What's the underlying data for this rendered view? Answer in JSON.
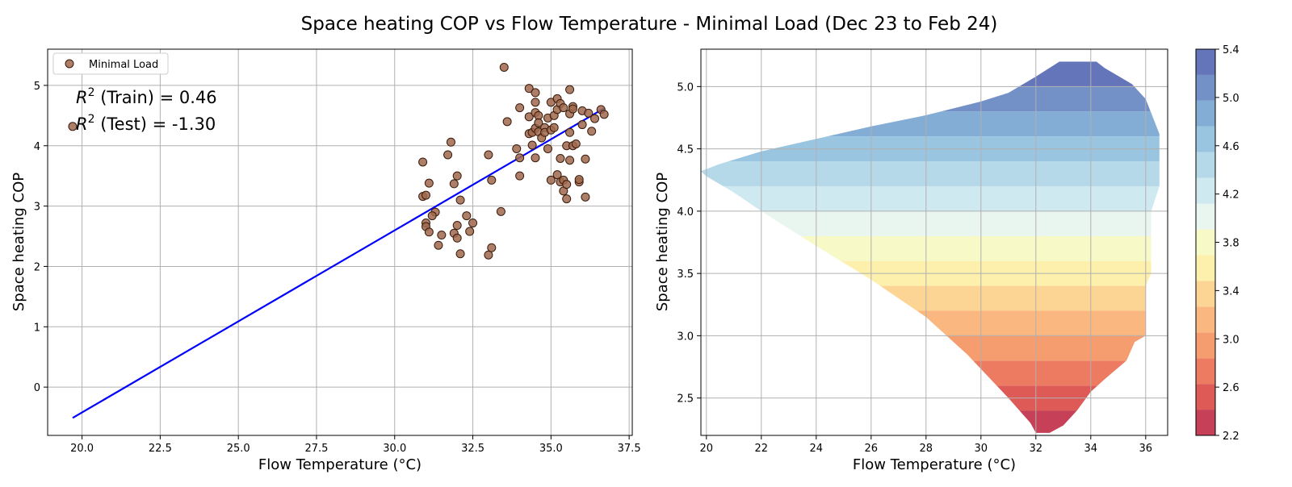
{
  "figure": {
    "title": "Space heating COP vs Flow Temperature - Minimal Load (Dec 23 to Feb 24)"
  },
  "colors": {
    "scatter_fill": "#a0694e",
    "scatter_edge": "#3a1a0a",
    "fit_line": "#0000ff",
    "grid": "#b0b0b0",
    "colorbar": [
      "#c64157",
      "#de5a56",
      "#ec7b61",
      "#f69d70",
      "#fab780",
      "#fcd594",
      "#fdefac",
      "#f7f9c6",
      "#e9f5ef",
      "#cfe9f1",
      "#b6d9ea",
      "#9ac5e0",
      "#84add5",
      "#7491c7",
      "#6476b9"
    ]
  },
  "chart_data": [
    {
      "type": "scatter",
      "xlabel": "Flow Temperature (°C)",
      "ylabel": "Space heating COP",
      "xlim": [
        18.9,
        37.6
      ],
      "ylim": [
        -0.8,
        5.6
      ],
      "xticks": [
        "20.0",
        "22.5",
        "25.0",
        "27.5",
        "30.0",
        "32.5",
        "35.0",
        "37.5"
      ],
      "xtick_values": [
        20,
        22.5,
        25,
        27.5,
        30,
        32.5,
        35,
        37.5
      ],
      "yticks": [
        "0",
        "1",
        "2",
        "3",
        "4",
        "5"
      ],
      "ytick_values": [
        0,
        1,
        2,
        3,
        4,
        5
      ],
      "grid": true,
      "legend": {
        "position": "top-left",
        "entries": [
          "Minimal Load"
        ]
      },
      "annotations": {
        "train_prefix": "R",
        "train_text": " (Train) = 0.46",
        "test_prefix": "R",
        "test_text": " (Test) = -1.30",
        "superscript": "2"
      },
      "series": [
        {
          "name": "Minimal Load",
          "points": [
            [
              19.7,
              4.32
            ],
            [
              30.9,
              3.73
            ],
            [
              31.1,
              3.38
            ],
            [
              30.9,
              3.16
            ],
            [
              31.0,
              3.18
            ],
            [
              31.3,
              2.9
            ],
            [
              31.2,
              2.84
            ],
            [
              31.0,
              2.72
            ],
            [
              31.0,
              2.66
            ],
            [
              31.1,
              2.57
            ],
            [
              31.4,
              2.35
            ],
            [
              31.5,
              2.52
            ],
            [
              31.7,
              3.85
            ],
            [
              31.8,
              4.06
            ],
            [
              31.9,
              3.37
            ],
            [
              31.9,
              2.55
            ],
            [
              32.0,
              3.5
            ],
            [
              32.0,
              2.68
            ],
            [
              32.0,
              2.47
            ],
            [
              32.1,
              3.1
            ],
            [
              32.1,
              2.21
            ],
            [
              32.3,
              2.84
            ],
            [
              32.4,
              2.58
            ],
            [
              32.5,
              2.72
            ],
            [
              33.0,
              3.85
            ],
            [
              33.0,
              2.19
            ],
            [
              33.1,
              2.31
            ],
            [
              33.1,
              3.43
            ],
            [
              33.4,
              2.91
            ],
            [
              33.5,
              5.3
            ],
            [
              33.6,
              4.4
            ],
            [
              33.9,
              3.95
            ],
            [
              34.0,
              3.8
            ],
            [
              34.0,
              4.63
            ],
            [
              34.0,
              3.5
            ],
            [
              34.3,
              4.95
            ],
            [
              34.3,
              4.48
            ],
            [
              34.3,
              4.2
            ],
            [
              34.4,
              4.22
            ],
            [
              34.4,
              4.01
            ],
            [
              34.5,
              4.88
            ],
            [
              34.5,
              4.72
            ],
            [
              34.5,
              4.55
            ],
            [
              34.5,
              4.29
            ],
            [
              34.5,
              3.8
            ],
            [
              34.6,
              4.5
            ],
            [
              34.6,
              4.38
            ],
            [
              34.6,
              4.23
            ],
            [
              34.7,
              4.13
            ],
            [
              34.8,
              4.3
            ],
            [
              34.8,
              4.22
            ],
            [
              34.9,
              4.46
            ],
            [
              34.9,
              3.95
            ],
            [
              35.0,
              4.72
            ],
            [
              35.0,
              4.26
            ],
            [
              35.0,
              3.43
            ],
            [
              35.1,
              4.5
            ],
            [
              35.1,
              4.3
            ],
            [
              35.2,
              4.78
            ],
            [
              35.2,
              4.6
            ],
            [
              35.2,
              3.52
            ],
            [
              35.3,
              4.7
            ],
            [
              35.3,
              3.79
            ],
            [
              35.3,
              3.4
            ],
            [
              35.4,
              4.63
            ],
            [
              35.4,
              3.43
            ],
            [
              35.4,
              3.25
            ],
            [
              35.5,
              4.0
            ],
            [
              35.5,
              3.36
            ],
            [
              35.5,
              3.12
            ],
            [
              35.6,
              4.93
            ],
            [
              35.6,
              4.53
            ],
            [
              35.6,
              4.22
            ],
            [
              35.6,
              3.76
            ],
            [
              35.7,
              4.65
            ],
            [
              35.7,
              4.61
            ],
            [
              35.7,
              4.0
            ],
            [
              35.8,
              4.03
            ],
            [
              35.9,
              3.4
            ],
            [
              35.9,
              3.44
            ],
            [
              36.0,
              4.58
            ],
            [
              36.0,
              4.35
            ],
            [
              36.1,
              3.78
            ],
            [
              36.1,
              3.15
            ],
            [
              36.2,
              4.54
            ],
            [
              36.3,
              4.24
            ],
            [
              36.4,
              4.45
            ],
            [
              36.6,
              4.6
            ],
            [
              36.7,
              4.52
            ]
          ]
        },
        {
          "name": "fit",
          "line": [
            [
              19.7,
              -0.51
            ],
            [
              36.7,
              4.62
            ]
          ]
        }
      ]
    },
    {
      "type": "contour",
      "xlabel": "Flow Temperature (°C)",
      "ylabel": "Space heating COP",
      "xlim": [
        19.8,
        36.8
      ],
      "ylim": [
        2.2,
        5.3
      ],
      "xticks": [
        "20",
        "22",
        "24",
        "26",
        "28",
        "30",
        "32",
        "34",
        "36"
      ],
      "xtick_values": [
        20,
        22,
        24,
        26,
        28,
        30,
        32,
        34,
        36
      ],
      "yticks": [
        "2.5",
        "3.0",
        "3.5",
        "4.0",
        "4.5",
        "5.0"
      ],
      "ytick_values": [
        2.5,
        3.0,
        3.5,
        4.0,
        4.5,
        5.0
      ],
      "grid": true,
      "levels": [
        2.2,
        2.4,
        2.6,
        2.8,
        3.0,
        3.2,
        3.4,
        3.6,
        3.8,
        4.0,
        4.2,
        4.4,
        4.6,
        4.8,
        5.0,
        5.2
      ],
      "region": [
        [
          19.8,
          4.32
        ],
        [
          20.5,
          4.38
        ],
        [
          22.0,
          4.48
        ],
        [
          24.0,
          4.58
        ],
        [
          26.0,
          4.68
        ],
        [
          28.0,
          4.77
        ],
        [
          30.0,
          4.88
        ],
        [
          31.0,
          4.95
        ],
        [
          32.0,
          5.08
        ],
        [
          33.0,
          5.22
        ],
        [
          33.3,
          5.27
        ],
        [
          33.8,
          5.27
        ],
        [
          34.5,
          5.15
        ],
        [
          35.5,
          5.02
        ],
        [
          36.0,
          4.9
        ],
        [
          36.5,
          4.62
        ],
        [
          36.5,
          4.2
        ],
        [
          36.2,
          4.0
        ],
        [
          36.2,
          3.5
        ],
        [
          36.0,
          3.4
        ],
        [
          36.0,
          3.0
        ],
        [
          35.6,
          2.95
        ],
        [
          35.3,
          2.8
        ],
        [
          34.5,
          2.65
        ],
        [
          34.0,
          2.55
        ],
        [
          33.5,
          2.4
        ],
        [
          33.0,
          2.28
        ],
        [
          32.5,
          2.22
        ],
        [
          32.0,
          2.22
        ],
        [
          31.8,
          2.3
        ],
        [
          31.0,
          2.5
        ],
        [
          29.5,
          2.85
        ],
        [
          28.0,
          3.15
        ],
        [
          26.0,
          3.45
        ],
        [
          24.0,
          3.72
        ],
        [
          22.0,
          4.0
        ],
        [
          21.0,
          4.15
        ],
        [
          20.0,
          4.28
        ]
      ],
      "colorbar_ticks": [
        "2.2",
        "2.6",
        "3.0",
        "3.4",
        "3.8",
        "4.2",
        "4.6",
        "5.0",
        "5.4"
      ],
      "colorbar_tick_values": [
        2.2,
        2.6,
        3.0,
        3.4,
        3.8,
        4.2,
        4.6,
        5.0,
        5.4
      ],
      "colorbar_range": [
        2.2,
        5.4
      ]
    }
  ]
}
